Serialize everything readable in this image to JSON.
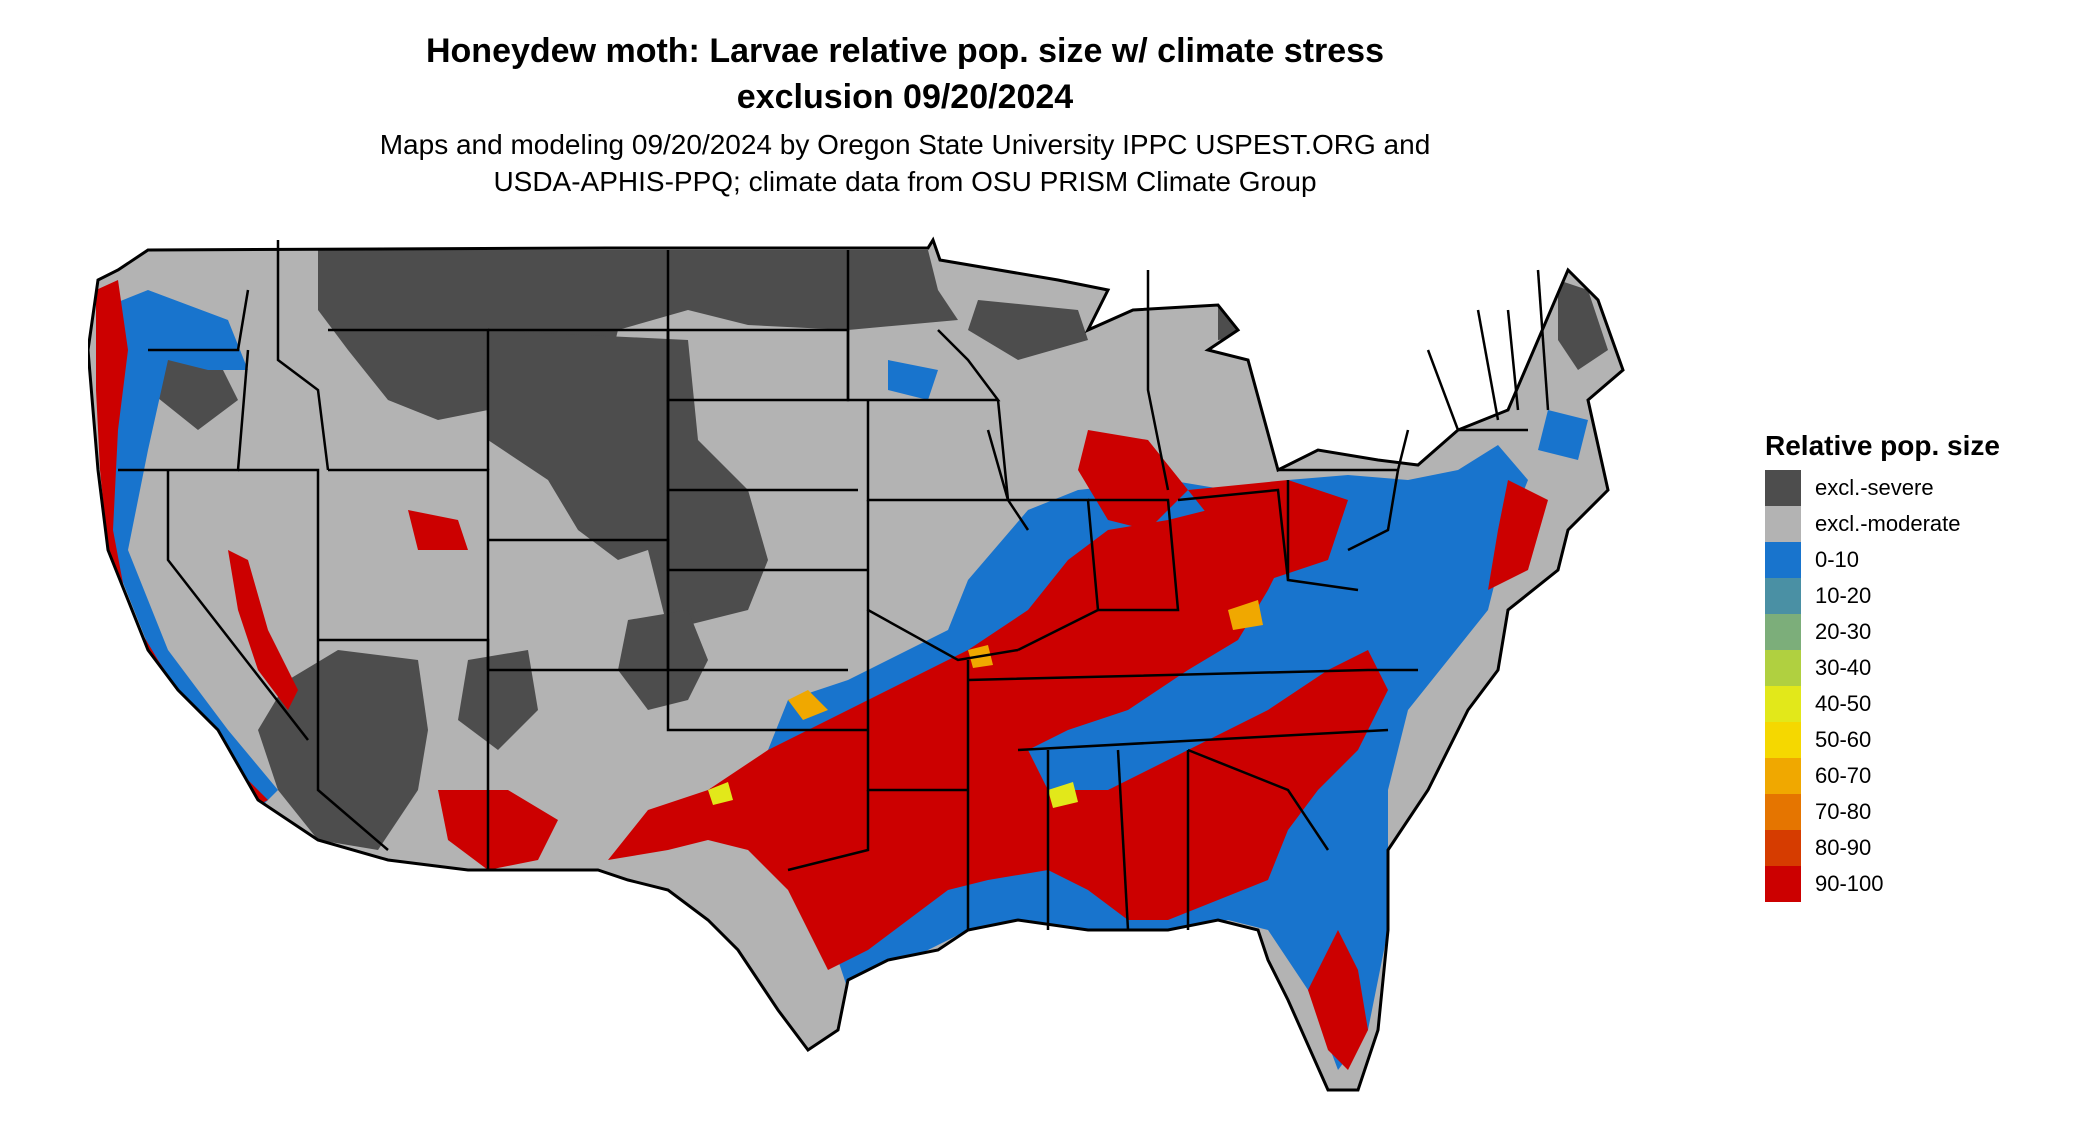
{
  "title": {
    "line1": "Honeydew moth: Larvae relative pop. size w/ climate stress",
    "line2": "exclusion 09/20/2024"
  },
  "subtitle": {
    "line1": "Maps and modeling 09/20/2024 by Oregon State University IPPC USPEST.ORG and",
    "line2": "USDA-APHIS-PPQ; climate data from OSU PRISM Climate Group"
  },
  "legend": {
    "title": "Relative pop. size",
    "items": [
      {
        "label": "excl.-severe",
        "color": "#4d4d4d"
      },
      {
        "label": "excl.-moderate",
        "color": "#b3b3b3"
      },
      {
        "label": "0-10",
        "color": "#1874cd"
      },
      {
        "label": "10-20",
        "color": "#4a90a4"
      },
      {
        "label": "20-30",
        "color": "#7cae7a"
      },
      {
        "label": "30-40",
        "color": "#b0d040"
      },
      {
        "label": "40-50",
        "color": "#e2e81a"
      },
      {
        "label": "50-60",
        "color": "#f5d800"
      },
      {
        "label": "60-70",
        "color": "#f0a800"
      },
      {
        "label": "70-80",
        "color": "#e57500"
      },
      {
        "label": "80-90",
        "color": "#d63c00"
      },
      {
        "label": "90-100",
        "color": "#cc0000"
      }
    ]
  }
}
